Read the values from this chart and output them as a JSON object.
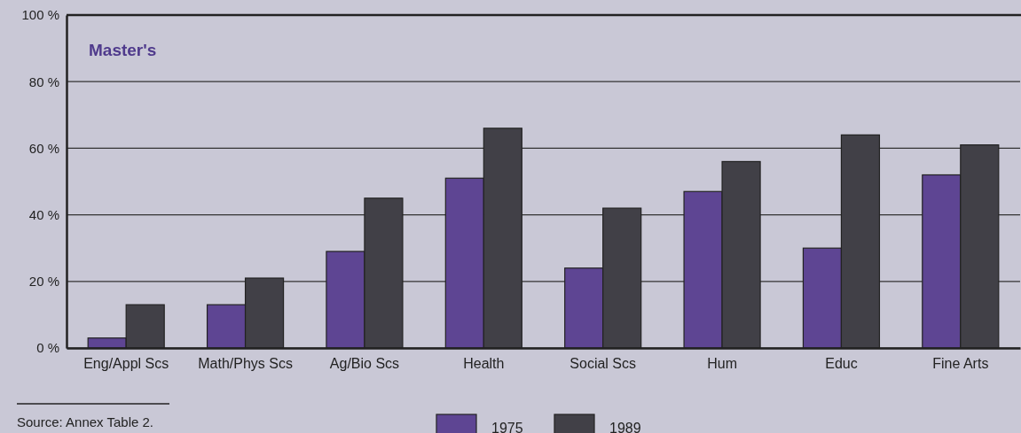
{
  "chart_data": {
    "type": "bar",
    "title": "Master's",
    "categories": [
      "Eng/Appl Scs",
      "Math/Phys Scs",
      "Ag/Bio Scs",
      "Health",
      "Social Scs",
      "Hum",
      "Educ",
      "Fine Arts"
    ],
    "series": [
      {
        "name": "1975",
        "color": "#5e4593",
        "values": [
          3,
          13,
          29,
          51,
          24,
          47,
          30,
          52
        ]
      },
      {
        "name": "1989",
        "color": "#414047",
        "values": [
          13,
          21,
          45,
          66,
          42,
          56,
          64,
          61
        ]
      }
    ],
    "ylim": [
      0,
      100
    ],
    "yticks": [
      {
        "value": 0,
        "label": "0 %"
      },
      {
        "value": 20,
        "label": "20 %"
      },
      {
        "value": 40,
        "label": "40 %"
      },
      {
        "value": 60,
        "label": "60 %"
      },
      {
        "value": 80,
        "label": "80 %"
      },
      {
        "value": 100,
        "label": "100 %"
      }
    ],
    "grid": "y",
    "legend": "bottom",
    "annotations": [
      "Source: Annex Table 2."
    ]
  }
}
